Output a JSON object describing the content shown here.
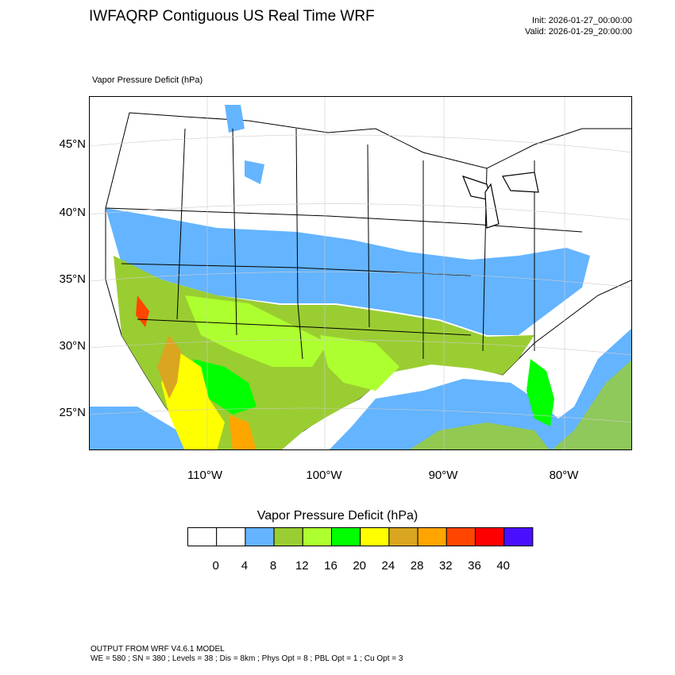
{
  "header": {
    "title": "IWFAQRP Contiguous US Real Time WRF",
    "init": "Init: 2026-01-27_00:00:00",
    "valid": "Valid: 2026-01-29_20:00:00",
    "field_label": "Vapor Pressure Deficit   (hPa)"
  },
  "map": {
    "lat_labels": [
      "45°N",
      "40°N",
      "35°N",
      "30°N",
      "25°N"
    ],
    "lon_labels": [
      "110°W",
      "100°W",
      "90°W",
      "80°W"
    ],
    "colors": {
      "ocean": "#ffffff",
      "water_blue": "#64b4ff",
      "green_olive": "#9acd32",
      "light_green": "#adff2f",
      "bright_green": "#00ff00",
      "yellow": "#ffff00",
      "gold": "#daa520",
      "orange": "#ffa500",
      "red_orange": "#ff4500"
    }
  },
  "colorbar": {
    "title": "Vapor Pressure Deficit  (hPa)",
    "levels": [
      "0",
      "4",
      "8",
      "12",
      "16",
      "20",
      "24",
      "28",
      "32",
      "36",
      "40"
    ],
    "colors": [
      "#ffffff",
      "#ffffff",
      "#64b4ff",
      "#9acd32",
      "#adff2f",
      "#00ff00",
      "#ffff00",
      "#daa520",
      "#ffa500",
      "#ff4500",
      "#ff0000",
      "#4b0fff"
    ]
  },
  "footer": {
    "line1": "OUTPUT FROM WRF V4.6.1 MODEL",
    "line2": "WE = 580 ; SN = 380 ; Levels = 38 ; Dis = 8km ; Phys Opt = 8 ; PBL Opt = 1 ; Cu Opt = 3"
  }
}
